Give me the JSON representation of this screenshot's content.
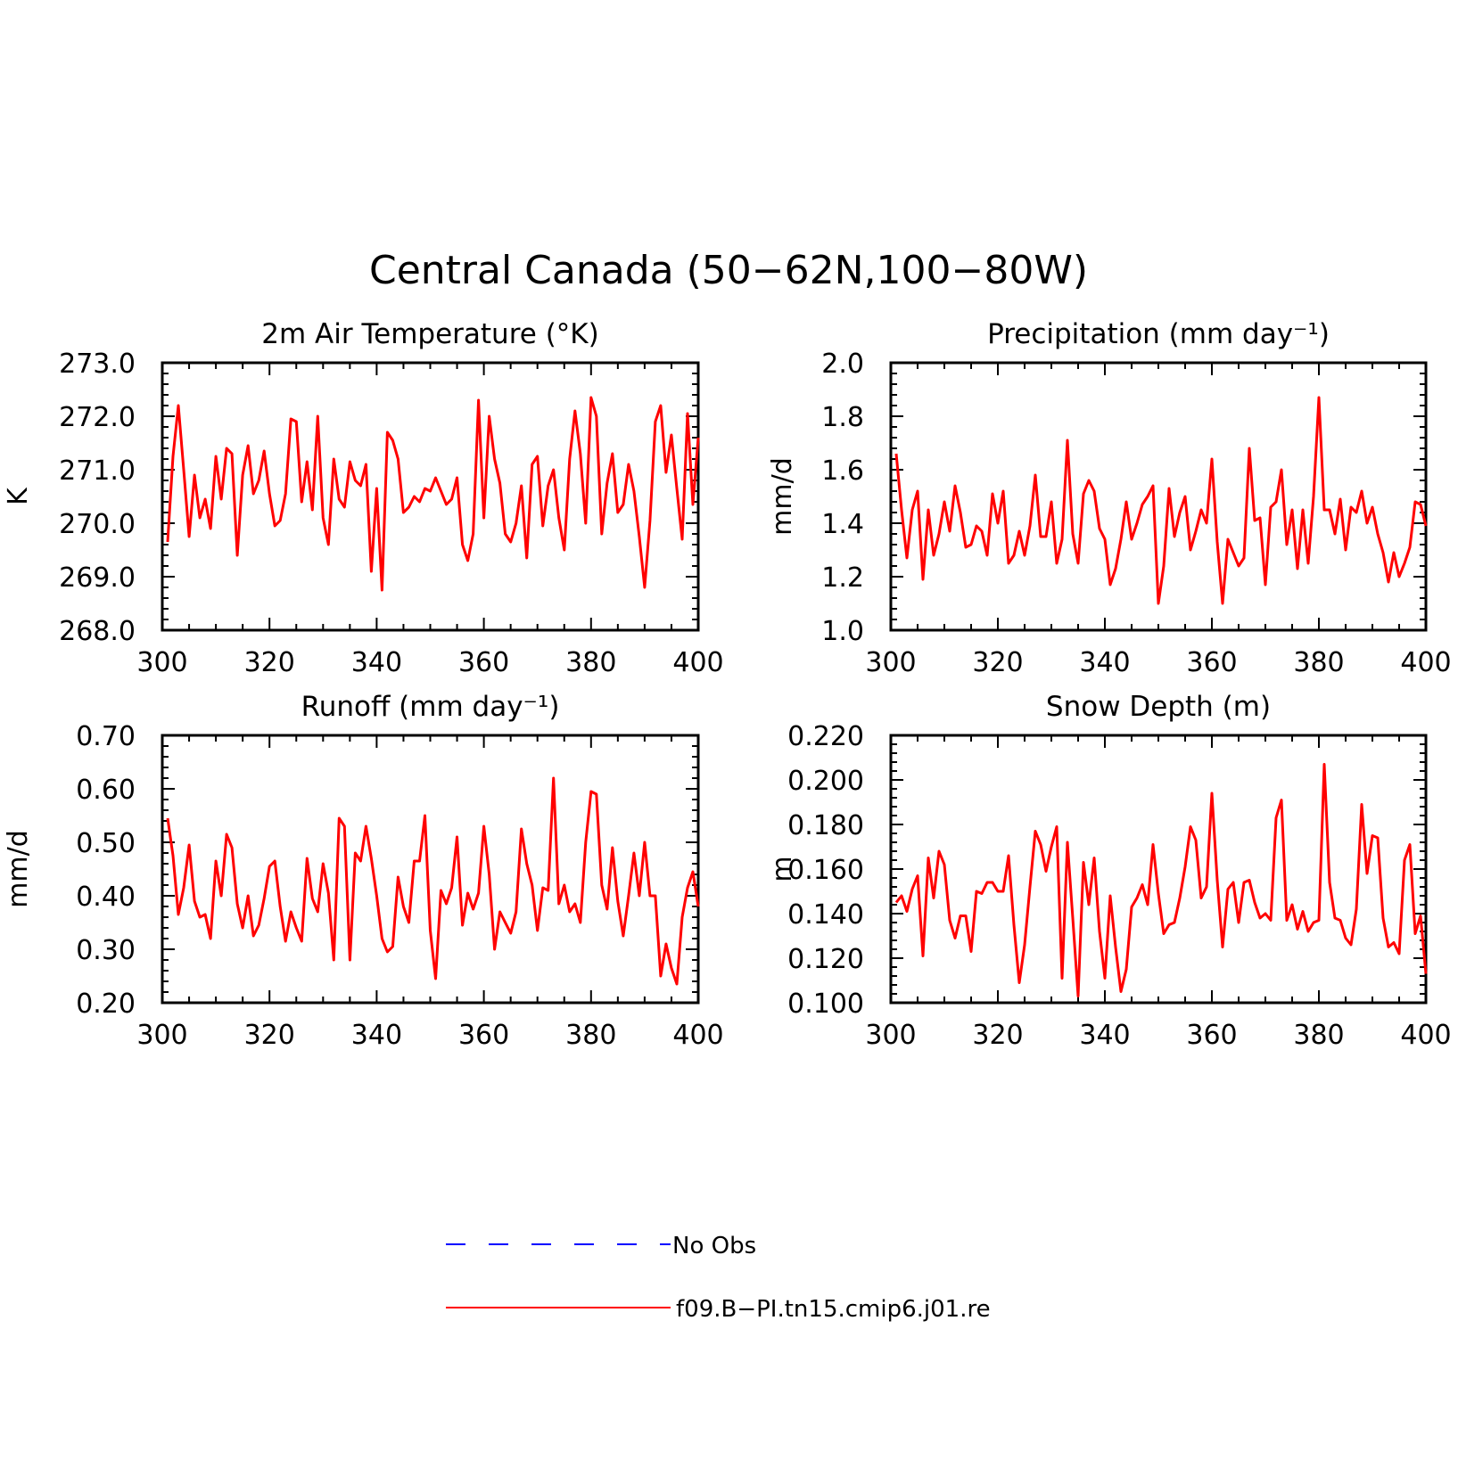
{
  "figure": {
    "title": "Central Canada (50−62N,100−80W)",
    "colors": {
      "series": "#ff0000",
      "obs": "#0000ff",
      "axis": "#000000"
    }
  },
  "legend": [
    {
      "label": "No Obs",
      "color": "#0000ff",
      "style": "dashed"
    },
    {
      "label": "f09.B−PI.tn15.cmip6.j01.re",
      "color": "#ff0000",
      "style": "solid"
    }
  ],
  "chart_data": [
    {
      "type": "line",
      "title": "2m Air Temperature (°K)",
      "ylabel": "K",
      "xlim": [
        300,
        400
      ],
      "ylim": [
        268.0,
        273.0
      ],
      "xticks": [
        "300",
        "320",
        "340",
        "360",
        "380",
        "400"
      ],
      "yticks": [
        "268.0",
        "269.0",
        "270.0",
        "271.0",
        "272.0",
        "273.0"
      ],
      "x_start": 301,
      "series": [
        {
          "color": "#ff0000",
          "values": [
            269.65,
            271.25,
            272.2,
            271.0,
            269.75,
            270.9,
            270.1,
            270.45,
            269.9,
            271.25,
            270.45,
            271.4,
            271.3,
            269.4,
            270.9,
            271.45,
            270.55,
            270.8,
            271.35,
            270.55,
            269.95,
            270.05,
            270.55,
            271.95,
            271.9,
            270.4,
            271.15,
            270.25,
            272.0,
            270.1,
            269.6,
            271.2,
            270.45,
            270.3,
            271.15,
            270.8,
            270.7,
            271.1,
            269.1,
            270.65,
            268.75,
            271.7,
            271.55,
            271.2,
            270.2,
            270.3,
            270.5,
            270.4,
            270.65,
            270.6,
            270.85,
            270.6,
            270.35,
            270.45,
            270.85,
            269.6,
            269.3,
            269.8,
            272.3,
            270.1,
            272.0,
            271.2,
            270.75,
            269.8,
            269.65,
            270.0,
            270.7,
            269.35,
            271.1,
            271.25,
            269.95,
            270.7,
            271.0,
            270.1,
            269.5,
            271.2,
            272.1,
            271.3,
            270.0,
            272.35,
            272.0,
            269.8,
            270.75,
            271.3,
            270.2,
            270.35,
            271.1,
            270.6,
            269.75,
            268.8,
            270.05,
            271.9,
            272.2,
            270.95,
            271.65,
            270.65,
            269.7,
            272.05,
            270.35,
            271.6
          ]
        }
      ]
    },
    {
      "type": "line",
      "title": "Precipitation (mm day⁻¹)",
      "ylabel": "mm/d",
      "xlim": [
        300,
        400
      ],
      "ylim": [
        1.0,
        2.0
      ],
      "xticks": [
        "300",
        "320",
        "340",
        "360",
        "380",
        "400"
      ],
      "yticks": [
        "1.0",
        "1.2",
        "1.4",
        "1.6",
        "1.8",
        "2.0"
      ],
      "x_start": 301,
      "series": [
        {
          "color": "#ff0000",
          "values": [
            1.66,
            1.45,
            1.27,
            1.45,
            1.52,
            1.19,
            1.45,
            1.28,
            1.36,
            1.48,
            1.37,
            1.54,
            1.44,
            1.31,
            1.32,
            1.39,
            1.37,
            1.28,
            1.51,
            1.4,
            1.52,
            1.25,
            1.28,
            1.37,
            1.28,
            1.39,
            1.58,
            1.35,
            1.35,
            1.48,
            1.25,
            1.34,
            1.71,
            1.36,
            1.25,
            1.51,
            1.56,
            1.52,
            1.38,
            1.34,
            1.17,
            1.23,
            1.34,
            1.48,
            1.34,
            1.4,
            1.47,
            1.5,
            1.54,
            1.1,
            1.24,
            1.53,
            1.35,
            1.44,
            1.5,
            1.3,
            1.37,
            1.45,
            1.4,
            1.64,
            1.33,
            1.1,
            1.34,
            1.29,
            1.24,
            1.27,
            1.68,
            1.41,
            1.42,
            1.17,
            1.46,
            1.48,
            1.6,
            1.32,
            1.45,
            1.23,
            1.45,
            1.25,
            1.5,
            1.87,
            1.45,
            1.45,
            1.36,
            1.49,
            1.3,
            1.46,
            1.44,
            1.52,
            1.4,
            1.46,
            1.36,
            1.29,
            1.18,
            1.29,
            1.2,
            1.25,
            1.31,
            1.48,
            1.47,
            1.39
          ]
        }
      ]
    },
    {
      "type": "line",
      "title": "Runoff (mm day⁻¹)",
      "ylabel": "mm/d",
      "xlim": [
        300,
        400
      ],
      "ylim": [
        0.2,
        0.7
      ],
      "xticks": [
        "300",
        "320",
        "340",
        "360",
        "380",
        "400"
      ],
      "yticks": [
        "0.20",
        "0.30",
        "0.40",
        "0.50",
        "0.60",
        "0.70"
      ],
      "x_start": 301,
      "series": [
        {
          "color": "#ff0000",
          "values": [
            0.545,
            0.475,
            0.365,
            0.415,
            0.495,
            0.39,
            0.36,
            0.365,
            0.32,
            0.465,
            0.4,
            0.515,
            0.49,
            0.385,
            0.34,
            0.4,
            0.325,
            0.345,
            0.395,
            0.455,
            0.465,
            0.38,
            0.315,
            0.37,
            0.34,
            0.315,
            0.47,
            0.395,
            0.37,
            0.46,
            0.405,
            0.28,
            0.545,
            0.53,
            0.28,
            0.48,
            0.465,
            0.53,
            0.47,
            0.4,
            0.32,
            0.295,
            0.305,
            0.435,
            0.38,
            0.35,
            0.465,
            0.465,
            0.55,
            0.335,
            0.245,
            0.41,
            0.385,
            0.415,
            0.51,
            0.345,
            0.405,
            0.375,
            0.405,
            0.53,
            0.44,
            0.3,
            0.37,
            0.35,
            0.33,
            0.37,
            0.525,
            0.46,
            0.42,
            0.335,
            0.415,
            0.41,
            0.62,
            0.385,
            0.42,
            0.37,
            0.385,
            0.35,
            0.5,
            0.595,
            0.59,
            0.42,
            0.375,
            0.49,
            0.39,
            0.325,
            0.4,
            0.48,
            0.4,
            0.5,
            0.4,
            0.4,
            0.25,
            0.31,
            0.265,
            0.235,
            0.36,
            0.415,
            0.445,
            0.38
          ]
        }
      ]
    },
    {
      "type": "line",
      "title": "Snow Depth (m)",
      "ylabel": "m",
      "xlim": [
        300,
        400
      ],
      "ylim": [
        0.1,
        0.22
      ],
      "xticks": [
        "300",
        "320",
        "340",
        "360",
        "380",
        "400"
      ],
      "yticks": [
        "0.100",
        "0.120",
        "0.140",
        "0.160",
        "0.180",
        "0.200",
        "0.220"
      ],
      "x_start": 301,
      "series": [
        {
          "color": "#ff0000",
          "values": [
            0.145,
            0.148,
            0.141,
            0.151,
            0.157,
            0.121,
            0.165,
            0.147,
            0.168,
            0.162,
            0.137,
            0.129,
            0.139,
            0.139,
            0.123,
            0.15,
            0.149,
            0.154,
            0.154,
            0.15,
            0.15,
            0.166,
            0.135,
            0.109,
            0.126,
            0.152,
            0.177,
            0.171,
            0.159,
            0.17,
            0.179,
            0.111,
            0.172,
            0.138,
            0.103,
            0.163,
            0.144,
            0.165,
            0.132,
            0.111,
            0.148,
            0.125,
            0.105,
            0.115,
            0.143,
            0.147,
            0.153,
            0.144,
            0.171,
            0.149,
            0.131,
            0.135,
            0.136,
            0.147,
            0.161,
            0.179,
            0.173,
            0.147,
            0.152,
            0.194,
            0.155,
            0.125,
            0.151,
            0.154,
            0.136,
            0.154,
            0.155,
            0.145,
            0.138,
            0.14,
            0.137,
            0.183,
            0.191,
            0.137,
            0.144,
            0.133,
            0.141,
            0.132,
            0.136,
            0.137,
            0.207,
            0.154,
            0.138,
            0.137,
            0.129,
            0.126,
            0.142,
            0.189,
            0.158,
            0.175,
            0.174,
            0.138,
            0.125,
            0.127,
            0.122,
            0.164,
            0.171,
            0.131,
            0.139,
            0.113
          ]
        }
      ]
    }
  ]
}
